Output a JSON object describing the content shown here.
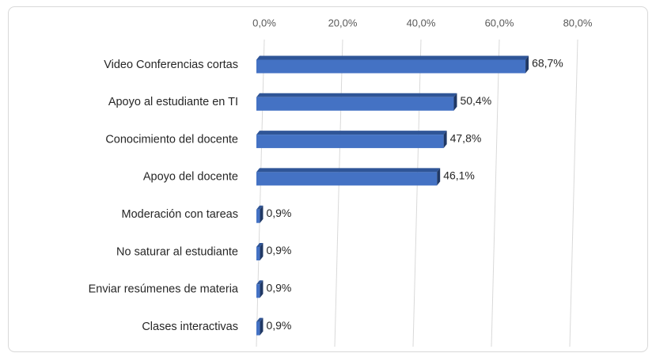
{
  "chart_data": {
    "type": "bar",
    "orientation": "horizontal",
    "categories": [
      "Video Conferencias cortas",
      "Apoyo al estudiante en TI",
      "Conocimiento del docente",
      "Apoyo del docente",
      "Moderación con tareas",
      "No saturar al estudiante",
      "Enviar resúmenes de materia",
      "Clases interactivas"
    ],
    "values": [
      68.7,
      50.4,
      47.8,
      46.1,
      0.9,
      0.9,
      0.9,
      0.9
    ],
    "value_labels": [
      "68,7%",
      "50,4%",
      "47,8%",
      "46,1%",
      "0,9%",
      "0,9%",
      "0,9%",
      "0,9%"
    ],
    "color": "#4472c4",
    "xlim": [
      0,
      80
    ],
    "xticks": [
      {
        "value": 0,
        "label": "0,0%"
      },
      {
        "value": 20,
        "label": "20,0%"
      },
      {
        "value": 40,
        "label": "40,0%"
      },
      {
        "value": 60,
        "label": "60,0%"
      },
      {
        "value": 80,
        "label": "80,0%"
      }
    ],
    "grid": true
  }
}
